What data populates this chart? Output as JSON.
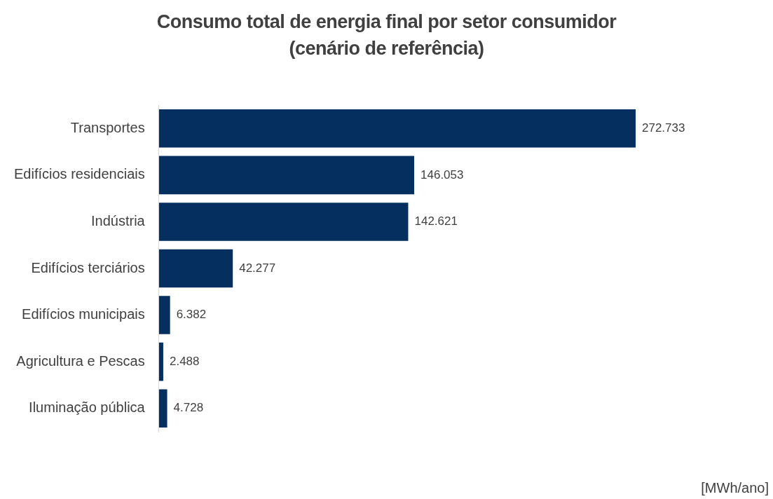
{
  "chart_data": {
    "type": "bar",
    "orientation": "horizontal",
    "title": "Consumo total de energia final por setor consumidor (cenário de referência)",
    "categories": [
      "Transportes",
      "Edifícios residenciais",
      "Indústria",
      "Edifícios terciários",
      "Edifícios municipais",
      "Agricultura e Pescas",
      "Iluminação pública"
    ],
    "values": [
      272733,
      146053,
      142621,
      42277,
      6382,
      2488,
      4728
    ],
    "value_labels": [
      "272.733",
      "146.053",
      "142.621",
      "42.277",
      "6.382",
      "2.488",
      "4.728"
    ],
    "color": "#052f5f",
    "legend": false,
    "annotations": [
      "[MWh/ano]"
    ]
  }
}
